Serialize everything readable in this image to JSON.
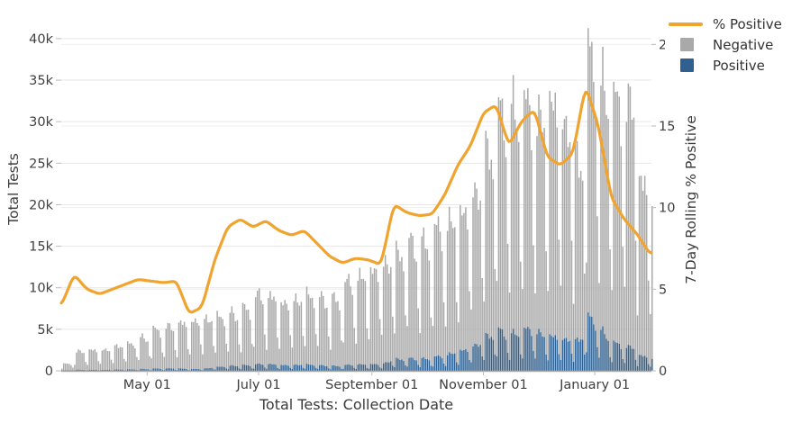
{
  "legend": {
    "items": [
      {
        "label": "% Positive",
        "swatch": "line",
        "color": "#F0A42F"
      },
      {
        "label": "Negative",
        "swatch": "square",
        "color": "#A9A9A9"
      },
      {
        "label": "Positive",
        "swatch": "square",
        "color": "#30608F"
      }
    ]
  },
  "axes": {
    "left": {
      "title": "Total Tests",
      "tick_labels": [
        "0",
        "5k",
        "10k",
        "15k",
        "20k",
        "25k",
        "30k",
        "35k",
        "40k"
      ]
    },
    "right": {
      "title": "7-Day Rolling % Positive",
      "tick_labels": [
        "0",
        "5",
        "10",
        "15",
        "20"
      ]
    },
    "bottom": {
      "title": "Total Tests: Collection Date",
      "tick_labels": [
        "May 01",
        "July 01",
        "September 01",
        "November 01",
        "January 01"
      ]
    }
  },
  "colors": {
    "background": "#FFFFFF",
    "grid_left": "#E7E7E7",
    "grid_right": "#EFEFEF",
    "axis_line": "#A8A8A8",
    "tick_mark": "#BBBBBB",
    "text": "#3F3F3F",
    "line": "#F0A42F",
    "bar_negative": "#A9A9A9",
    "bar_positive": "#30608F"
  },
  "chart_data": {
    "type": "bar",
    "title": "Total Tests: Collection Date",
    "xlabel": "Total Tests: Collection Date",
    "ylabel_left": "Total Tests",
    "ylabel_right": "7-Day Rolling % Positive",
    "ylim_left_tests_k": [
      0,
      43.35
    ],
    "ylim_right_pct": [
      0,
      22.06
    ],
    "x_range_dates": [
      "2020-03-15",
      "2021-02-02"
    ],
    "x_tick_dates": [
      "2020-05-01",
      "2020-07-01",
      "2020-09-01",
      "2020-11-01",
      "2021-01-01"
    ],
    "x_tick_day_offsets": [
      47,
      108,
      170,
      231,
      292
    ],
    "bar_granularity": "daily, stacked (Positive below, Negative above), strong weekday-high / weekend-low cycle",
    "series": [
      {
        "name": "Negative",
        "type": "bar",
        "color": "#A9A9A9",
        "axis": "left"
      },
      {
        "name": "Positive",
        "type": "bar",
        "color": "#30608F",
        "axis": "left"
      },
      {
        "name": "% Positive",
        "type": "line",
        "color": "#F0A42F",
        "axis": "right"
      }
    ],
    "weekly_summary": {
      "week_start": [
        "2020-03-15",
        "2020-03-22",
        "2020-03-29",
        "2020-04-05",
        "2020-04-12",
        "2020-04-19",
        "2020-04-26",
        "2020-05-03",
        "2020-05-10",
        "2020-05-17",
        "2020-05-24",
        "2020-05-31",
        "2020-06-07",
        "2020-06-14",
        "2020-06-21",
        "2020-06-28",
        "2020-07-05",
        "2020-07-12",
        "2020-07-19",
        "2020-07-26",
        "2020-08-02",
        "2020-08-09",
        "2020-08-16",
        "2020-08-23",
        "2020-08-30",
        "2020-09-06",
        "2020-09-13",
        "2020-09-20",
        "2020-09-27",
        "2020-10-04",
        "2020-10-11",
        "2020-10-18",
        "2020-10-25",
        "2020-11-01",
        "2020-11-08",
        "2020-11-15",
        "2020-11-22",
        "2020-11-29",
        "2020-12-06",
        "2020-12-13",
        "2020-12-20",
        "2020-12-27",
        "2021-01-03",
        "2021-01-10",
        "2021-01-17",
        "2021-01-24",
        "2021-01-31"
      ],
      "weekday_peak_total_tests_k": [
        0.9,
        2.5,
        2.7,
        2.8,
        3.3,
        3.6,
        4.3,
        5.3,
        5.7,
        6.2,
        6.6,
        6.9,
        7.2,
        7.5,
        8.0,
        9.8,
        9.6,
        9.0,
        9.5,
        10.0,
        9.5,
        9.2,
        11.5,
        12.2,
        13.3,
        14.4,
        15.5,
        16.9,
        16.4,
        18.5,
        19.4,
        21.0,
        24.0,
        29.0,
        34.0,
        33.4,
        34.5,
        33.0,
        35.5,
        33.0,
        28.0,
        41.5,
        36.5,
        35.0,
        35.0,
        25.0,
        22.0
      ],
      "pct_positive_7day": [
        4.0,
        5.9,
        5.0,
        4.7,
        5.0,
        5.3,
        5.6,
        5.5,
        5.4,
        5.5,
        3.5,
        3.9,
        6.8,
        8.8,
        9.3,
        8.8,
        9.2,
        8.6,
        8.3,
        8.6,
        7.8,
        7.0,
        6.6,
        6.9,
        6.8,
        6.5,
        10.2,
        9.7,
        9.5,
        9.6,
        10.8,
        12.6,
        13.8,
        15.8,
        16.3,
        13.8,
        15.3,
        16.0,
        13.1,
        12.6,
        13.3,
        17.5,
        15.0,
        10.6,
        9.3,
        8.4,
        7.2
      ]
    }
  }
}
